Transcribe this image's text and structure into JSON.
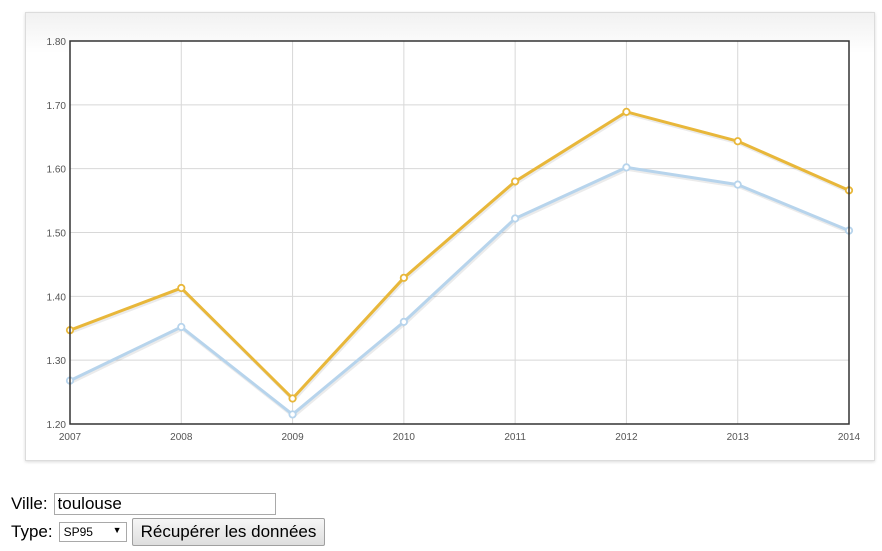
{
  "chart_data": {
    "type": "line",
    "x": [
      "2007",
      "2008",
      "2009",
      "2010",
      "2011",
      "2012",
      "2013",
      "2014"
    ],
    "series": [
      {
        "color": "#e8b73a",
        "values": [
          1.347,
          1.413,
          1.24,
          1.429,
          1.58,
          1.689,
          1.643,
          1.566
        ]
      },
      {
        "color": "#b7d4ec",
        "values": [
          1.268,
          1.352,
          1.215,
          1.36,
          1.522,
          1.602,
          1.575,
          1.503
        ]
      }
    ],
    "ylim": [
      1.2,
      1.8
    ],
    "yticks": [
      "1.80",
      "1.70",
      "1.60",
      "1.50",
      "1.40",
      "1.30",
      "1.20"
    ],
    "grid": true
  },
  "form": {
    "ville_label": "Ville:",
    "ville_value": "toulouse",
    "type_label": "Type:",
    "type_selected": "SP95",
    "fetch_button_label": "Récupérer les données"
  }
}
